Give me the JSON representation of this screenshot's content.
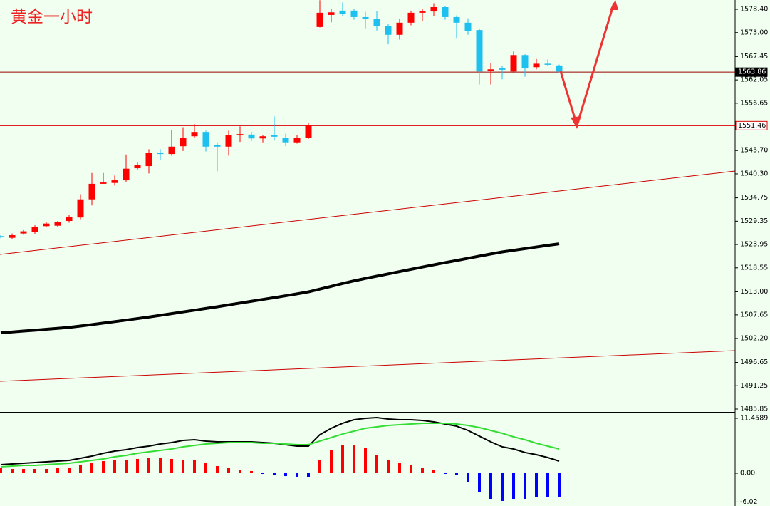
{
  "chart_data": [
    {
      "type": "candlestick",
      "title": "黄金一小时",
      "up_color": "#ff0000",
      "down_color": "#1ec0ef",
      "ylim": [
        1485.19,
        1580.55
      ],
      "yticks": [
        {
          "value": 1578.4,
          "label": "1578.40"
        },
        {
          "value": 1573.0,
          "label": "1573.00"
        },
        1567.45,
        1562.05,
        1556.65,
        {
          "value": 1545.7,
          "label": "1545.70"
        },
        {
          "value": 1540.3,
          "label": "1540.30"
        },
        1534.75,
        1529.35,
        1523.95,
        1518.55,
        {
          "value": 1513.0,
          "label": "1513.00"
        },
        1507.65,
        {
          "value": 1502.2,
          "label": "1502.20"
        },
        1496.65,
        1491.25,
        1485.85
      ],
      "levels": [
        1563.86,
        1551.46
      ],
      "open": [
        1525.9,
        1525.5,
        1526.5,
        1526.8,
        1528.2,
        1528.3,
        1529.4,
        1530.2,
        1534.4,
        1538.0,
        1538.2,
        1538.8,
        1541.6,
        1542.1,
        1545.2,
        1544.9,
        1546.7,
        1549.0,
        1550.0,
        1546.9,
        1546.6,
        1549.2,
        1549.4,
        1548.5,
        1549.2,
        1548.7,
        1547.6,
        1548.7,
        1574.3,
        1577.1,
        1578.1,
        1578.1,
        1576.6,
        1576.1,
        1574.6,
        1572.5,
        1575.3,
        1577.6,
        1577.9,
        1578.9,
        1576.6,
        1575.3,
        1573.6,
        1564.2,
        1564.7,
        1564.0,
        1567.8,
        1565.0,
        1565.8,
        1565.4
      ],
      "high": [
        1526.1,
        1526.5,
        1527.3,
        1528.4,
        1529.1,
        1529.4,
        1530.8,
        1535.6,
        1540.5,
        1540.5,
        1539.9,
        1544.8,
        1542.9,
        1546.0,
        1546.0,
        1550.5,
        1551.1,
        1551.8,
        1550.3,
        1547.6,
        1550.3,
        1551.3,
        1550.0,
        1549.3,
        1553.6,
        1549.6,
        1549.3,
        1552.0,
        1580.5,
        1578.4,
        1580.0,
        1578.4,
        1577.8,
        1578.0,
        1575.0,
        1576.1,
        1578.1,
        1578.4,
        1579.8,
        1579.1,
        1577.0,
        1576.3,
        1574.0,
        1566.0,
        1565.2,
        1568.6,
        1568.0,
        1566.9,
        1566.8,
        1565.6
      ],
      "low": [
        1525.4,
        1525.2,
        1526.2,
        1526.4,
        1527.9,
        1528.0,
        1529.0,
        1529.8,
        1533.0,
        1538.0,
        1537.6,
        1538.4,
        1541.2,
        1540.4,
        1543.6,
        1544.5,
        1545.6,
        1548.6,
        1545.5,
        1540.9,
        1544.5,
        1547.7,
        1547.9,
        1547.6,
        1548.0,
        1546.7,
        1547.3,
        1548.4,
        1574.2,
        1575.4,
        1576.8,
        1576.0,
        1574.0,
        1573.5,
        1570.3,
        1571.4,
        1574.7,
        1575.6,
        1576.9,
        1576.0,
        1571.6,
        1572.5,
        1561.0,
        1561.0,
        1562.2,
        1563.7,
        1562.8,
        1564.5,
        1565.3,
        1563.8
      ],
      "close": [
        1525.6,
        1526.1,
        1527.0,
        1528.0,
        1528.8,
        1529.1,
        1530.4,
        1534.4,
        1538.0,
        1538.3,
        1538.8,
        1541.5,
        1542.3,
        1545.2,
        1544.9,
        1546.6,
        1548.7,
        1550.0,
        1546.6,
        1546.6,
        1549.2,
        1549.5,
        1548.5,
        1549.0,
        1548.9,
        1547.6,
        1548.7,
        1551.5,
        1577.6,
        1577.7,
        1577.4,
        1576.6,
        1576.1,
        1574.6,
        1572.5,
        1575.3,
        1577.6,
        1577.9,
        1578.9,
        1576.6,
        1575.3,
        1573.3,
        1564.0,
        1564.5,
        1564.4,
        1567.8,
        1564.7,
        1565.8,
        1565.6,
        1564.0
      ],
      "ma": {
        "color": "#000000",
        "values": [
          1503.49,
          1503.7,
          1503.92,
          1504.11,
          1504.33,
          1504.54,
          1504.76,
          1505.07,
          1505.4,
          1505.75,
          1506.09,
          1506.44,
          1506.79,
          1507.15,
          1507.55,
          1507.94,
          1508.34,
          1508.73,
          1509.13,
          1509.53,
          1509.96,
          1510.38,
          1510.8,
          1511.23,
          1511.64,
          1512.07,
          1512.51,
          1512.98,
          1513.62,
          1514.26,
          1514.91,
          1515.53,
          1516.09,
          1516.62,
          1517.15,
          1517.68,
          1518.21,
          1518.73,
          1519.25,
          1519.76,
          1520.25,
          1520.75,
          1521.26,
          1521.75,
          1522.23,
          1522.61,
          1522.99,
          1523.37,
          1523.75,
          1524.11
        ]
      }
    },
    {
      "type": "macd",
      "ylim": [
        -6.55,
        12.5
      ],
      "yticks": [
        11.4589,
        {
          "value": 0,
          "label": "0.00"
        },
        {
          "value": -6.02,
          "label": "-6.02"
        }
      ],
      "histogram": {
        "pos_color": "#ff0000",
        "neg_color": "#0000ff",
        "values": [
          1.04,
          0.89,
          0.89,
          0.89,
          0.89,
          1.04,
          1.19,
          1.79,
          2.23,
          2.53,
          2.68,
          2.83,
          2.98,
          3.13,
          3.13,
          2.98,
          2.83,
          2.83,
          2.08,
          1.49,
          1.04,
          0.74,
          0.45,
          -0.15,
          -0.45,
          -0.6,
          -0.74,
          -0.89,
          2.68,
          4.91,
          5.8,
          5.8,
          5.21,
          3.87,
          2.83,
          2.23,
          1.64,
          1.19,
          0.74,
          -0.15,
          -0.45,
          -1.79,
          -3.87,
          -5.36,
          -5.8,
          -5.36,
          -5.36,
          -5.06,
          -5.06,
          -4.91
        ]
      },
      "series": [
        {
          "color": "#000000",
          "values": [
            1.79,
            1.93,
            2.08,
            2.23,
            2.38,
            2.53,
            2.68,
            3.13,
            3.57,
            4.17,
            4.61,
            4.91,
            5.36,
            5.65,
            6.1,
            6.4,
            6.85,
            6.99,
            6.7,
            6.55,
            6.55,
            6.55,
            6.55,
            6.4,
            6.25,
            5.95,
            5.65,
            5.65,
            8.04,
            9.38,
            10.42,
            11.16,
            11.46,
            11.61,
            11.31,
            11.16,
            11.16,
            11.01,
            10.71,
            10.27,
            9.82,
            8.93,
            7.74,
            6.55,
            5.51,
            5.06,
            4.32,
            3.87,
            3.27,
            2.53
          ]
        },
        {
          "color": "#33dd33",
          "values": [
            1.34,
            1.49,
            1.64,
            1.64,
            1.79,
            1.93,
            2.08,
            2.38,
            2.68,
            2.98,
            3.42,
            3.72,
            4.17,
            4.46,
            4.76,
            5.06,
            5.51,
            5.8,
            6.1,
            6.25,
            6.4,
            6.4,
            6.4,
            6.25,
            6.25,
            6.1,
            5.95,
            5.95,
            6.7,
            7.44,
            8.18,
            8.78,
            9.38,
            9.67,
            9.97,
            10.12,
            10.27,
            10.42,
            10.42,
            10.42,
            10.27,
            9.97,
            9.52,
            8.93,
            8.33,
            7.59,
            6.99,
            6.25,
            5.65,
            5.06
          ]
        }
      ]
    }
  ]
}
